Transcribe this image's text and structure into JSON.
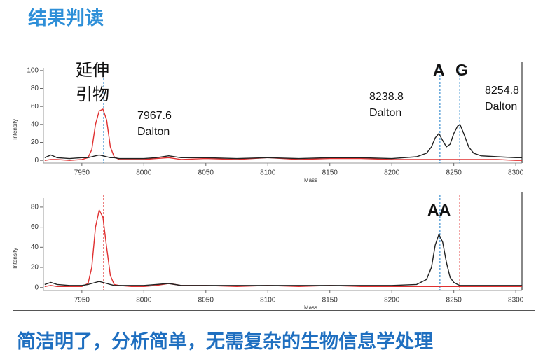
{
  "title": "结果判读",
  "footer": "简洁明了，分析简单，无需复杂的生物信息学处理",
  "chart_data": [
    {
      "type": "line",
      "xlabel": "Mass",
      "ylabel": "Intensity",
      "xlim": [
        7919,
        8305
      ],
      "ylim": [
        -3,
        103
      ],
      "xticks": [
        7950,
        8000,
        8050,
        8100,
        8150,
        8200,
        8250,
        8300
      ],
      "yticks": [
        0,
        20,
        40,
        60,
        80,
        100
      ],
      "annotations": [
        "延伸引物",
        "7967.6 Dalton",
        "A",
        "G",
        "8238.8 Dalton",
        "8254.8 Dalton"
      ],
      "markers": [
        {
          "x": 7967.6,
          "color": "#3a8fd0"
        },
        {
          "x": 8238.8,
          "color": "#3a8fd0"
        },
        {
          "x": 8254.8,
          "color": "#3a8fd0"
        }
      ],
      "x": [
        7920,
        7925,
        7930,
        7940,
        7950,
        7955,
        7958,
        7961,
        7964,
        7967,
        7970,
        7973,
        7976,
        7980,
        7990,
        8000,
        8010,
        8020,
        8030,
        8050,
        8075,
        8100,
        8125,
        8150,
        8175,
        8200,
        8220,
        8228,
        8232,
        8235,
        8238,
        8241,
        8244,
        8247,
        8250,
        8253,
        8255,
        8258,
        8262,
        8266,
        8272,
        8285,
        8300,
        8305
      ],
      "series": [
        {
          "color": "#222222",
          "values": [
            3,
            6,
            3,
            2,
            3,
            3,
            4,
            5,
            6,
            5,
            4,
            3,
            3,
            2,
            2,
            2,
            3,
            5,
            3,
            3,
            2,
            3,
            2,
            3,
            3,
            2,
            4,
            8,
            15,
            25,
            30,
            22,
            15,
            18,
            30,
            38,
            40,
            30,
            15,
            8,
            5,
            4,
            3,
            3
          ]
        },
        {
          "color": "#e03030",
          "values": [
            0,
            1,
            1,
            0,
            1,
            3,
            12,
            40,
            55,
            57,
            45,
            15,
            4,
            1,
            1,
            1,
            2,
            3,
            1,
            2,
            1,
            3,
            1,
            2,
            2,
            1,
            1,
            1,
            1,
            1,
            1,
            1,
            1,
            1,
            1,
            1,
            1,
            1,
            1,
            1,
            1,
            1,
            0,
            0
          ]
        }
      ]
    },
    {
      "type": "line",
      "xlabel": "Mass",
      "ylabel": "Intensity",
      "xlim": [
        7919,
        8305
      ],
      "ylim": [
        -3,
        89
      ],
      "xticks": [
        7950,
        8000,
        8050,
        8100,
        8150,
        8200,
        8250,
        8300
      ],
      "yticks": [
        0,
        20,
        40,
        60,
        80
      ],
      "annotations": [
        "AA"
      ],
      "markers": [
        {
          "x": 7967.6,
          "color": "#e03030"
        },
        {
          "x": 8238.8,
          "color": "#3a8fd0"
        },
        {
          "x": 8254.8,
          "color": "#e03030"
        }
      ],
      "x": [
        7920,
        7925,
        7930,
        7940,
        7950,
        7955,
        7958,
        7961,
        7964,
        7967,
        7970,
        7973,
        7976,
        7980,
        7990,
        8000,
        8010,
        8020,
        8030,
        8050,
        8075,
        8100,
        8125,
        8150,
        8175,
        8200,
        8220,
        8228,
        8232,
        8235,
        8238,
        8241,
        8244,
        8247,
        8250,
        8253,
        8255,
        8258,
        8262,
        8266,
        8272,
        8285,
        8300,
        8305
      ],
      "series": [
        {
          "color": "#222222",
          "values": [
            3,
            5,
            3,
            2,
            2,
            3,
            4,
            5,
            6,
            5,
            4,
            3,
            2,
            2,
            2,
            2,
            3,
            4,
            2,
            2,
            2,
            2,
            2,
            2,
            2,
            2,
            3,
            8,
            20,
            42,
            53,
            45,
            25,
            10,
            5,
            3,
            2,
            2,
            2,
            2,
            2,
            2,
            2,
            2
          ]
        },
        {
          "color": "#e03030",
          "values": [
            1,
            2,
            1,
            1,
            1,
            4,
            20,
            60,
            77,
            70,
            40,
            12,
            3,
            2,
            1,
            1,
            2,
            4,
            2,
            2,
            1,
            2,
            1,
            2,
            1,
            1,
            1,
            1,
            1,
            1,
            1,
            1,
            1,
            1,
            1,
            1,
            1,
            1,
            1,
            1,
            1,
            1,
            1,
            1
          ]
        }
      ]
    }
  ]
}
